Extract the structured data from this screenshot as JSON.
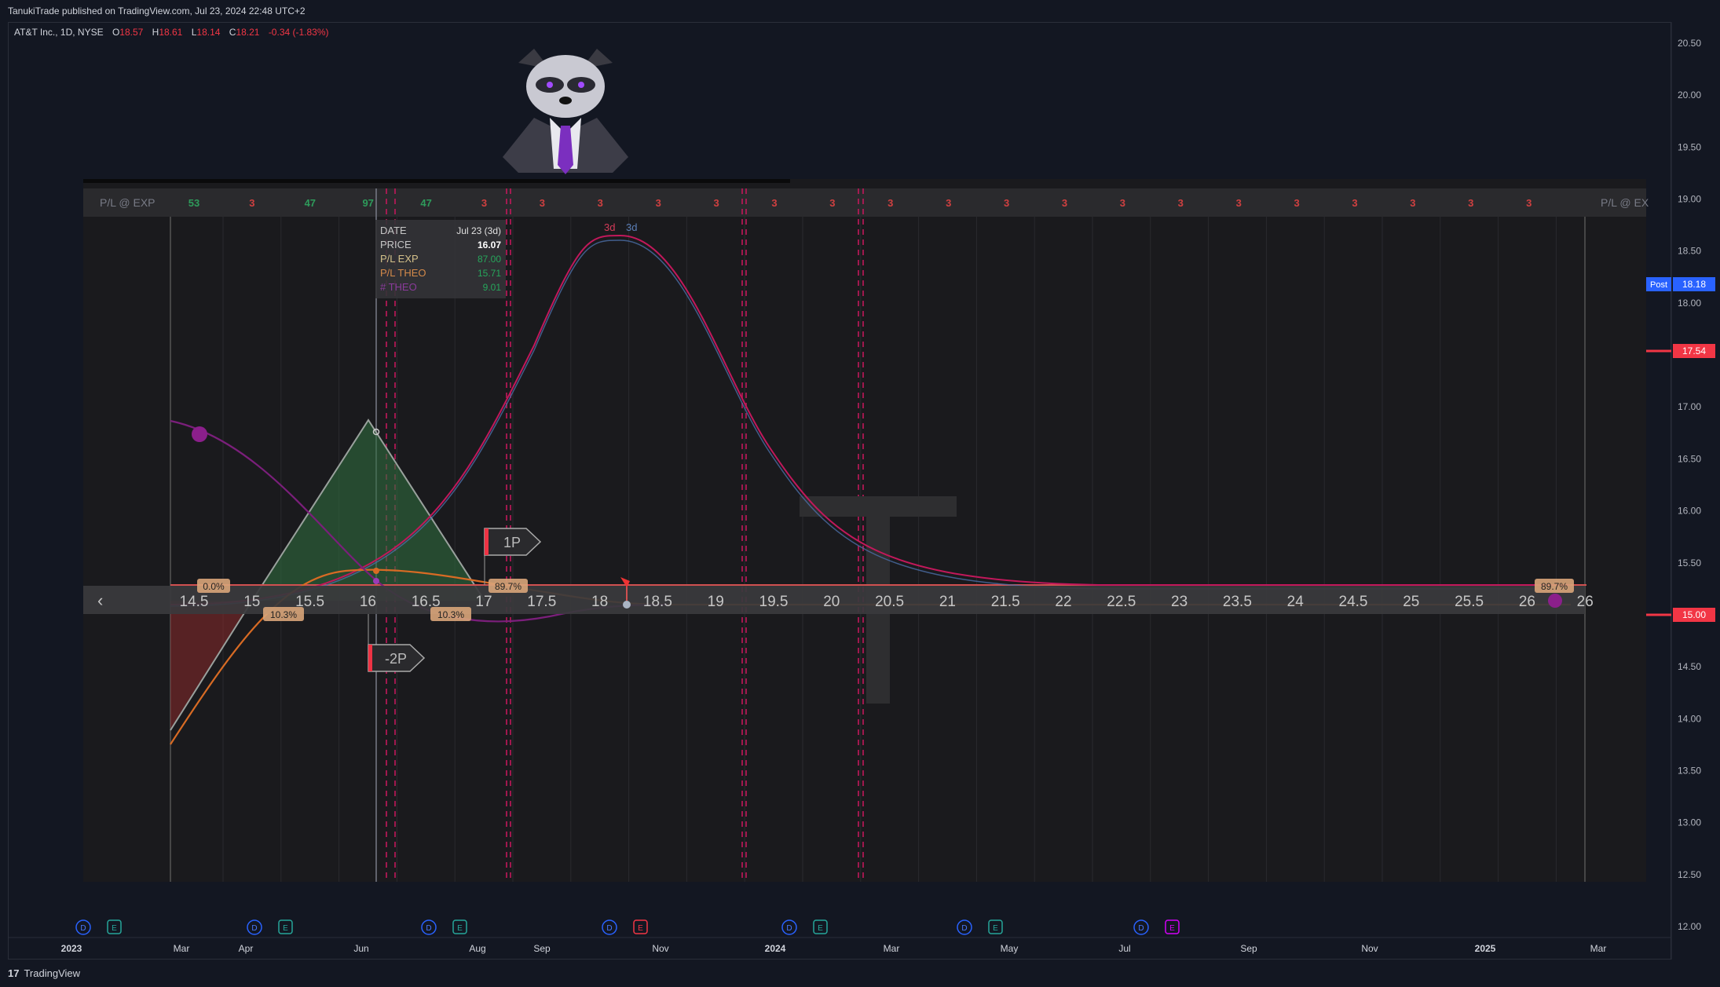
{
  "header": {
    "published": "TanukiTrade published on TradingView.com, Jul 23, 2024 22:48 UTC+2"
  },
  "symbol": {
    "name": "AT&T Inc., 1D, NYSE",
    "open_label": "O",
    "open": "18.57",
    "high_label": "H",
    "high": "18.61",
    "low_label": "L",
    "low": "18.14",
    "close_label": "C",
    "close": "18.21",
    "change": "-0.34 (-1.83%)"
  },
  "price_axis": {
    "ticks": [
      "20.50",
      "20.00",
      "19.50",
      "19.00",
      "18.50",
      "18.00",
      "17.50",
      "17.00",
      "16.50",
      "16.00",
      "15.50",
      "15.00",
      "14.50",
      "14.00",
      "13.50",
      "13.00",
      "12.50",
      "12.00"
    ],
    "post_label": "Post",
    "post_value": "18.18",
    "marker_red_1": "17.54",
    "marker_red_2": "15.00"
  },
  "time_axis": {
    "labels": [
      "2023",
      "Mar",
      "Apr",
      "Jun",
      "Aug",
      "Sep",
      "Nov",
      "2024",
      "Mar",
      "May",
      "Jul",
      "Sep",
      "Nov",
      "2025",
      "Mar"
    ]
  },
  "events": [
    {
      "d": "D",
      "e": "E"
    },
    {
      "d": "D",
      "e": "E"
    },
    {
      "d": "D",
      "e": "E"
    },
    {
      "d": "D",
      "e": "E"
    },
    {
      "d": "D",
      "e": "E"
    },
    {
      "d": "D",
      "e": "E"
    },
    {
      "d": "D",
      "e": "E"
    }
  ],
  "overlay": {
    "row_label_left": "P/L @ EXP",
    "row_label_right": "P/L @ EX",
    "row_values": [
      "53",
      "3",
      "47",
      "97",
      "47",
      "3",
      "3",
      "3",
      "3",
      "3",
      "3",
      "3",
      "3",
      "3",
      "3",
      "3",
      "3",
      "3",
      "3",
      "3",
      "3",
      "3",
      "3",
      "3"
    ],
    "strike_ticks": [
      "14.5",
      "15",
      "15.5",
      "16",
      "16.5",
      "17",
      "17.5",
      "18",
      "18.5",
      "19",
      "19.5",
      "20",
      "20.5",
      "21",
      "21.5",
      "22",
      "22.5",
      "23",
      "23.5",
      "24",
      "24.5",
      "25",
      "25.5",
      "26",
      "26"
    ],
    "tooltip": {
      "date_label": "DATE",
      "date_value": "Jul 23 (3d)",
      "price_label": "PRICE",
      "price_value": "16.07",
      "plexp_label": "P/L EXP",
      "plexp_value": "87.00",
      "pltheo_label": "P/L THEO",
      "pltheo_value": "15.71",
      "theo_label": "# THEO",
      "theo_value": "9.01"
    },
    "dist_label_red": "3d",
    "dist_label_blue": "3d",
    "leg_1p": "1P",
    "leg_2p": "-2P",
    "pct_labels": [
      "0.0%",
      "10.3%",
      "89.7%",
      "10.3%",
      "89.7%"
    ],
    "watermark_letter": "T"
  },
  "footer": {
    "brand": "TradingView"
  },
  "chart_data": {
    "type": "line",
    "title": "",
    "xlabel": "",
    "ylabel": "",
    "ylim": [
      12.0,
      20.5
    ],
    "pl_at_expiration": {
      "strikes": [
        14.5,
        15.0,
        15.5,
        16.0,
        16.5,
        17.0,
        17.5,
        18.0
      ],
      "values": [
        53,
        3,
        47,
        97,
        47,
        3,
        3,
        3
      ]
    },
    "distribution_peak_strike": 18.2,
    "cursor": {
      "price": 16.07,
      "pl_exp": 87.0,
      "pl_theo": 15.71,
      "theo": 9.01
    },
    "legend": "none",
    "grid": true
  }
}
